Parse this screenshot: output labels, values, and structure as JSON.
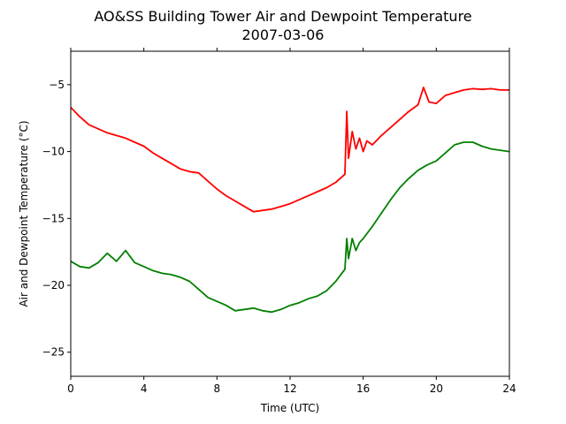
{
  "chart_data": {
    "type": "line",
    "title": "AO&SS Building Tower Air and Dewpoint Temperature",
    "subtitle": "2007-03-06",
    "xlabel": "Time (UTC)",
    "ylabel": "Air and Dewpoint Temperature (°C)",
    "xlim": [
      0,
      24
    ],
    "ylim": [
      -26.8,
      -2.5
    ],
    "xticks": [
      0,
      4,
      8,
      12,
      16,
      20,
      24
    ],
    "yticks": [
      -25,
      -20,
      -15,
      -10,
      -5
    ],
    "ytick_labels": [
      "−25",
      "−20",
      "−15",
      "−10",
      "−5"
    ],
    "grid": false,
    "legend": "none",
    "series": [
      {
        "color": "#ff0000",
        "x": [
          0,
          0.5,
          1,
          1.5,
          2,
          2.5,
          3,
          3.5,
          4,
          4.5,
          5,
          5.5,
          6,
          6.5,
          7,
          7.5,
          8,
          8.5,
          9,
          9.5,
          10,
          10.5,
          11,
          11.5,
          12,
          12.5,
          13,
          13.5,
          14,
          14.5,
          15,
          15.1,
          15.2,
          15.4,
          15.6,
          15.8,
          16,
          16.2,
          16.5,
          17,
          17.5,
          18,
          18.5,
          19,
          19.3,
          19.6,
          20,
          20.5,
          21,
          21.5,
          22,
          22.5,
          23,
          23.5,
          24
        ],
        "y": [
          -6.7,
          -7.4,
          -8.0,
          -8.3,
          -8.6,
          -8.8,
          -9.0,
          -9.3,
          -9.6,
          -10.1,
          -10.5,
          -10.9,
          -11.3,
          -11.5,
          -11.6,
          -12.2,
          -12.8,
          -13.3,
          -13.7,
          -14.1,
          -14.5,
          -14.4,
          -14.3,
          -14.1,
          -13.9,
          -13.6,
          -13.3,
          -13.0,
          -12.7,
          -12.3,
          -11.7,
          -7.0,
          -10.5,
          -8.5,
          -9.8,
          -9.0,
          -10.0,
          -9.2,
          -9.5,
          -8.8,
          -8.2,
          -7.6,
          -7.0,
          -6.5,
          -5.2,
          -6.3,
          -6.4,
          -5.8,
          -5.6,
          -5.4,
          -5.3,
          -5.35,
          -5.3,
          -5.4,
          -5.4
        ]
      },
      {
        "color": "#008000",
        "x": [
          0,
          0.5,
          1,
          1.5,
          2,
          2.5,
          3,
          3.5,
          4,
          4.5,
          5,
          5.5,
          6,
          6.5,
          7,
          7.5,
          8,
          8.5,
          9,
          9.5,
          10,
          10.5,
          11,
          11.5,
          12,
          12.5,
          13,
          13.5,
          14,
          14.5,
          15,
          15.1,
          15.2,
          15.4,
          15.6,
          15.8,
          16,
          16.5,
          17,
          17.5,
          18,
          18.5,
          19,
          19.5,
          20,
          20.5,
          21,
          21.5,
          22,
          22.5,
          23,
          23.5,
          24
        ],
        "y": [
          -18.2,
          -18.6,
          -18.7,
          -18.3,
          -17.6,
          -18.2,
          -17.4,
          -18.3,
          -18.6,
          -18.9,
          -19.1,
          -19.2,
          -19.4,
          -19.7,
          -20.3,
          -20.9,
          -21.2,
          -21.5,
          -21.9,
          -21.8,
          -21.7,
          -21.9,
          -22.0,
          -21.8,
          -21.5,
          -21.3,
          -21.0,
          -20.8,
          -20.4,
          -19.7,
          -18.8,
          -16.5,
          -18.0,
          -16.5,
          -17.4,
          -16.8,
          -16.5,
          -15.6,
          -14.6,
          -13.6,
          -12.7,
          -12.0,
          -11.4,
          -11.0,
          -10.7,
          -10.1,
          -9.5,
          -9.3,
          -9.3,
          -9.6,
          -9.8,
          -9.9,
          -10.0
        ]
      }
    ]
  }
}
